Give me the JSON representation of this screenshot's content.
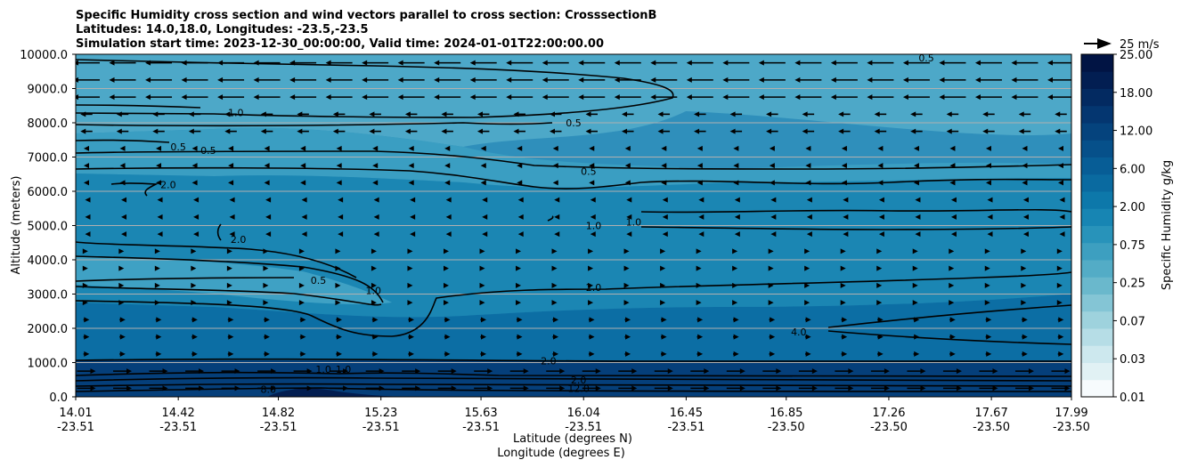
{
  "chart_data": {
    "type": "contour",
    "title_lines": [
      "Specific Humidity cross section and wind vectors parallel to cross section: CrosssectionB",
      "Latitudes: 14.0,18.0, Longitudes: -23.5,-23.5",
      "Simulation start time: 2023-12-30_00:00:00, Valid time: 2024-01-01T22:00:00.00"
    ],
    "xlabel_lat": "Latitude (degrees N)",
    "xlabel_lon": "Longitude (degrees E)",
    "ylabel": "Altitude (meters)",
    "x_ticks": [
      {
        "lat": "14.01",
        "lon": "-23.51"
      },
      {
        "lat": "14.42",
        "lon": "-23.51"
      },
      {
        "lat": "14.82",
        "lon": "-23.51"
      },
      {
        "lat": "15.23",
        "lon": "-23.51"
      },
      {
        "lat": "15.63",
        "lon": "-23.51"
      },
      {
        "lat": "16.04",
        "lon": "-23.51"
      },
      {
        "lat": "16.45",
        "lon": "-23.51"
      },
      {
        "lat": "16.85",
        "lon": "-23.50"
      },
      {
        "lat": "17.26",
        "lon": "-23.50"
      },
      {
        "lat": "17.67",
        "lon": "-23.50"
      },
      {
        "lat": "17.99",
        "lon": "-23.50"
      }
    ],
    "y_ticks": [
      "0.0",
      "1000.0",
      "2000.0",
      "3000.0",
      "4000.0",
      "5000.0",
      "6000.0",
      "7000.0",
      "8000.0",
      "9000.0",
      "10000.0"
    ],
    "ylim": [
      0,
      10000
    ],
    "xlim": [
      14.01,
      17.99
    ],
    "grid": "horizontal",
    "colorbar": {
      "label": "Specific Humidity g/kg",
      "ticks": [
        "0.01",
        "0.03",
        "0.07",
        "0.25",
        "0.75",
        "2.00",
        "6.00",
        "12.00",
        "18.00",
        "25.00"
      ],
      "colors": [
        "#f7fbfd",
        "#e1f1f4",
        "#cde8ee",
        "#b6dde6",
        "#9ed2dd",
        "#84c5d5",
        "#6ab8cc",
        "#53acc6",
        "#3d9fc0",
        "#2893ba",
        "#1785b3",
        "#0d78aa",
        "#0a6aa0",
        "#075d96",
        "#06508a",
        "#05437d",
        "#043670",
        "#032a61",
        "#021e52",
        "#011444"
      ]
    },
    "quiver_key": {
      "label": "25 m/s",
      "speed": 25
    },
    "contour_labels": [
      {
        "text": "0.5",
        "lat": 16.0,
        "alt": 8000
      },
      {
        "text": "0.5",
        "lat": 16.06,
        "alt": 6580
      },
      {
        "text": "1.0",
        "lat": 16.08,
        "alt": 5000
      },
      {
        "text": "1.0",
        "lat": 16.24,
        "alt": 5100
      },
      {
        "text": "2.0",
        "lat": 16.08,
        "alt": 3200
      },
      {
        "text": "2.0",
        "lat": 15.9,
        "alt": 1050
      },
      {
        "text": "4.0",
        "lat": 16.9,
        "alt": 1900
      },
      {
        "text": "2.0",
        "lat": 16.02,
        "alt": 500
      },
      {
        "text": "12.0",
        "lat": 16.02,
        "alt": 250
      },
      {
        "text": "8.0",
        "lat": 14.78,
        "alt": 220
      },
      {
        "text": "1.0",
        "lat": 14.65,
        "alt": 8300
      },
      {
        "text": "0.5",
        "lat": 14.42,
        "alt": 7300
      },
      {
        "text": "0.5",
        "lat": 14.54,
        "alt": 7200
      },
      {
        "text": "2.0",
        "lat": 14.38,
        "alt": 6200
      },
      {
        "text": "2.0",
        "lat": 14.66,
        "alt": 4600
      },
      {
        "text": "0.5",
        "lat": 14.98,
        "alt": 3400
      },
      {
        "text": "1.0",
        "lat": 15.2,
        "alt": 3100
      },
      {
        "text": "1.0",
        "lat": 15.0,
        "alt": 800
      },
      {
        "text": "1.0",
        "lat": 15.08,
        "alt": 800
      },
      {
        "text": "0.5",
        "lat": 17.41,
        "alt": 9900
      }
    ]
  }
}
